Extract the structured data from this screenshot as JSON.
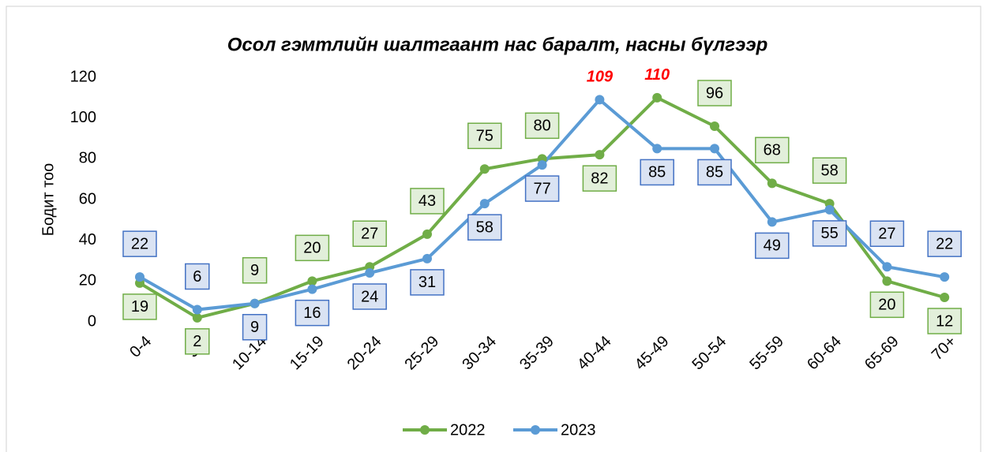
{
  "chart_data": {
    "type": "line",
    "title": "Осол гэмтлийн шалтгаант нас баралт, насны бүлгээр",
    "y_label": "Бодит тоо",
    "categories": [
      "0-4",
      "5-9",
      "10-14",
      "15-19",
      "20-24",
      "25-29",
      "30-34",
      "35-39",
      "40-44",
      "45-49",
      "50-54",
      "55-59",
      "60-64",
      "65-69",
      "70+"
    ],
    "series": [
      {
        "name": "2022",
        "color": "#70ad47",
        "values": [
          19,
          2,
          9,
          20,
          27,
          43,
          75,
          80,
          82,
          110,
          96,
          68,
          58,
          20,
          12
        ]
      },
      {
        "name": "2023",
        "color": "#5b9bd5",
        "values": [
          22,
          6,
          9,
          16,
          24,
          31,
          58,
          77,
          109,
          85,
          85,
          49,
          55,
          27,
          22
        ]
      }
    ],
    "ylim": [
      0,
      120
    ],
    "yticks": [
      0,
      20,
      40,
      60,
      80,
      100,
      120
    ],
    "grid": false,
    "legend": "bottom"
  }
}
